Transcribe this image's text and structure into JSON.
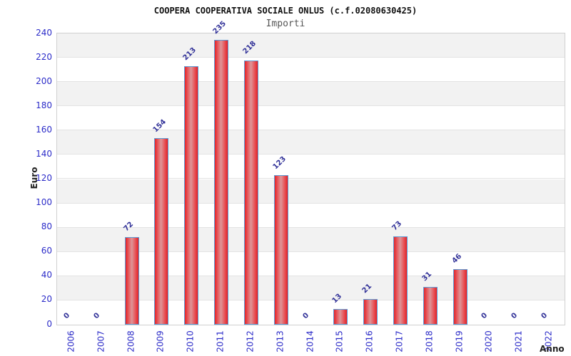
{
  "chart_data": {
    "type": "bar",
    "title": "COOPERA COOPERATIVA SOCIALE ONLUS (c.f.02080630425)",
    "subtitle": "Importi",
    "xlabel": "Anno",
    "ylabel": "Euro",
    "categories": [
      "2006",
      "2007",
      "2008",
      "2009",
      "2010",
      "2011",
      "2012",
      "2013",
      "2014",
      "2015",
      "2016",
      "2017",
      "2018",
      "2019",
      "2020",
      "2021",
      "2022"
    ],
    "values": [
      0,
      0,
      72,
      154,
      213,
      235,
      218,
      123,
      0,
      13,
      21,
      73,
      31,
      46,
      0,
      0,
      0
    ],
    "ylim": [
      0,
      240
    ],
    "ytick_step": 20,
    "grid": "horizontal-bands",
    "legend_position": "none",
    "colors": {
      "bar_fill_edge": "#e32227",
      "bar_fill_mid": "#e7575c",
      "bar_fill_center": "#dd9598",
      "bar_border": "#5b9bd5",
      "tick_label": "#2b2bc8",
      "value_label": "#333399",
      "band_gray": "#f2f2f2",
      "band_white": "#ffffff",
      "gridline": "#e3e3e3",
      "plot_border": "#d0d0d0",
      "title_color": "#111111",
      "subtitle_color": "#555555",
      "axis_title_color": "#222222"
    }
  }
}
